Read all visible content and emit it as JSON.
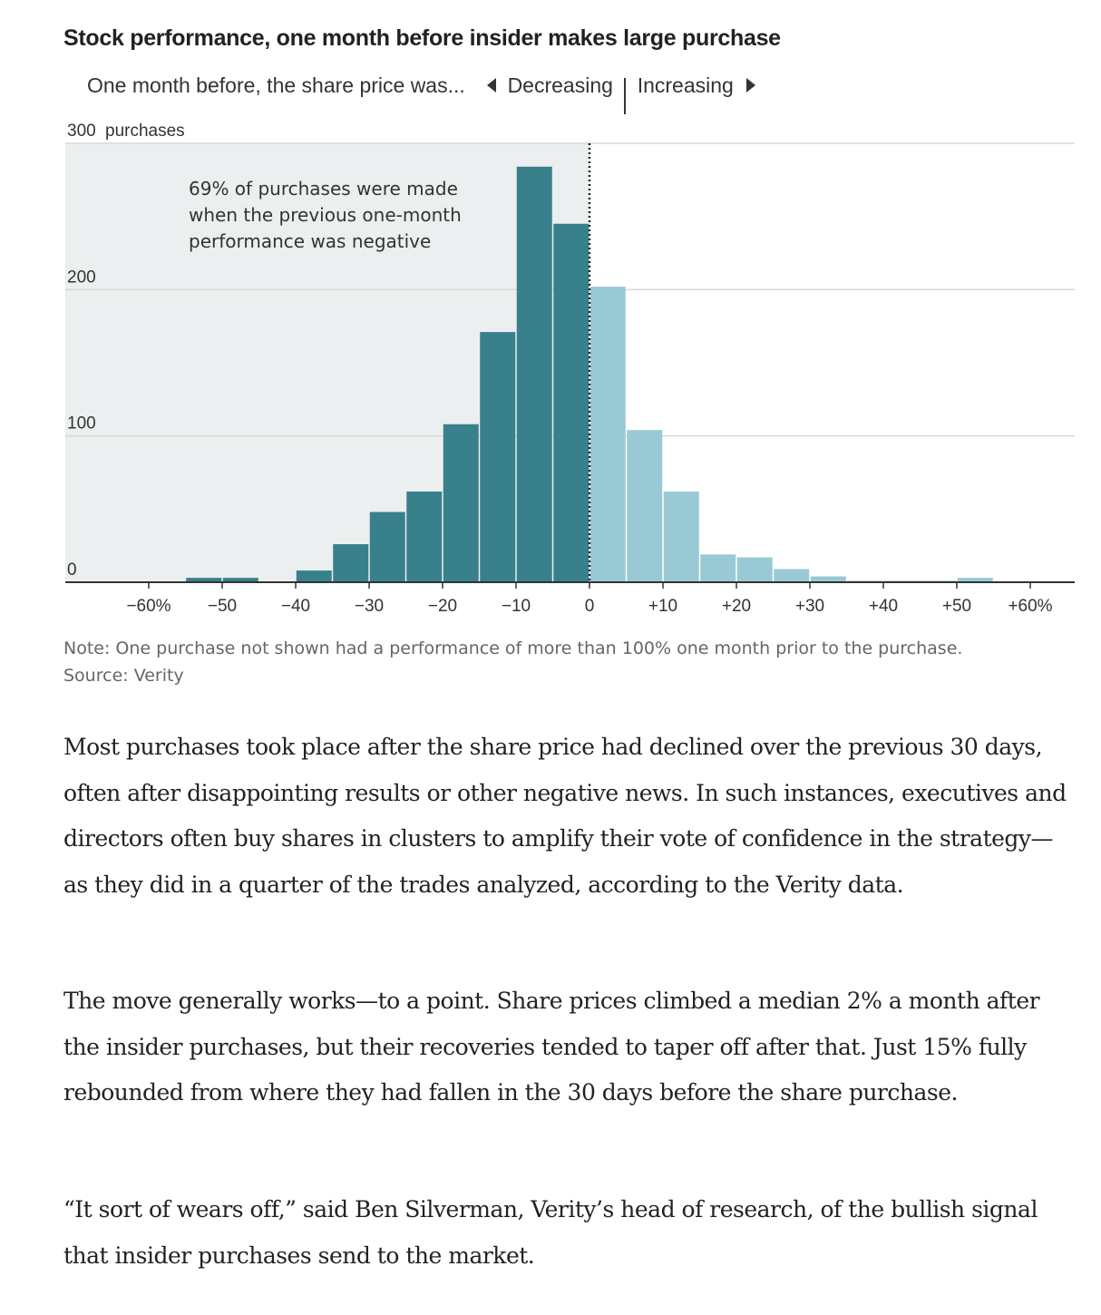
{
  "chart_data": {
    "type": "bar",
    "title": "Stock performance, one month before insider makes large purchase",
    "subtitle": {
      "prefix": "One month before, the share price was...",
      "decreasing_label": "Decreasing",
      "increasing_label": "Increasing"
    },
    "ylabel": "purchases",
    "ylim": [
      0,
      300
    ],
    "y_ticks": [
      {
        "value": 0,
        "label": "0"
      },
      {
        "value": 100,
        "label": "100"
      },
      {
        "value": 200,
        "label": "200"
      },
      {
        "value": 300,
        "label": "300"
      }
    ],
    "xlim": [
      -70,
      65
    ],
    "x_ticks": [
      {
        "value": -60,
        "label": "−60%"
      },
      {
        "value": -50,
        "label": "−50"
      },
      {
        "value": -40,
        "label": "−40"
      },
      {
        "value": -30,
        "label": "−30"
      },
      {
        "value": -20,
        "label": "−20"
      },
      {
        "value": -10,
        "label": "−10"
      },
      {
        "value": 0,
        "label": "0"
      },
      {
        "value": 10,
        "label": "+10"
      },
      {
        "value": 20,
        "label": "+20"
      },
      {
        "value": 30,
        "label": "+30"
      },
      {
        "value": 40,
        "label": "+40"
      },
      {
        "value": 50,
        "label": "+50"
      },
      {
        "value": 60,
        "label": "+60%"
      }
    ],
    "bin_width": 5,
    "bins": [
      {
        "start": -55,
        "value": 3
      },
      {
        "start": -50,
        "value": 3
      },
      {
        "start": -40,
        "value": 8
      },
      {
        "start": -35,
        "value": 26
      },
      {
        "start": -30,
        "value": 48
      },
      {
        "start": -25,
        "value": 62
      },
      {
        "start": -20,
        "value": 108
      },
      {
        "start": -15,
        "value": 171
      },
      {
        "start": -10,
        "value": 284
      },
      {
        "start": -5,
        "value": 245
      },
      {
        "start": 0,
        "value": 202
      },
      {
        "start": 5,
        "value": 104
      },
      {
        "start": 10,
        "value": 62
      },
      {
        "start": 15,
        "value": 19
      },
      {
        "start": 20,
        "value": 17
      },
      {
        "start": 25,
        "value": 9
      },
      {
        "start": 30,
        "value": 4
      },
      {
        "start": 35,
        "value": 1
      },
      {
        "start": 40,
        "value": 1
      },
      {
        "start": 45,
        "value": 1
      },
      {
        "start": 50,
        "value": 3
      }
    ],
    "colors": {
      "negative": "#38808c",
      "positive": "#9ac9d6",
      "shade": "#ecefef",
      "grid": "#d8d8d8"
    },
    "annotation": [
      "69% of purchases were made",
      "when the previous one-month",
      "performance was negative"
    ],
    "grid": true
  },
  "note": "Note: One purchase not shown had a performance of more than 100% one month prior to the purchase.",
  "source": "Source: Verity",
  "article": {
    "paragraphs": [
      "Most purchases took place after the share price had declined over the previous 30 days, often after disappointing results or other negative news. In such instances, executives and directors often buy shares in clusters to amplify their vote of confidence in the strategy—as they did in a quarter of the trades analyzed, according to the Verity data.",
      "The move generally works—to a point. Share prices climbed a median 2% a month after the insider purchases, but their recoveries tended to taper off after that. Just 15% fully rebounded from where they had fallen in the 30 days before the share purchase.",
      "“It sort of wears off,” said Ben Silverman, Verity’s head of research, of the bullish signal that insider purchases send to the market."
    ]
  }
}
